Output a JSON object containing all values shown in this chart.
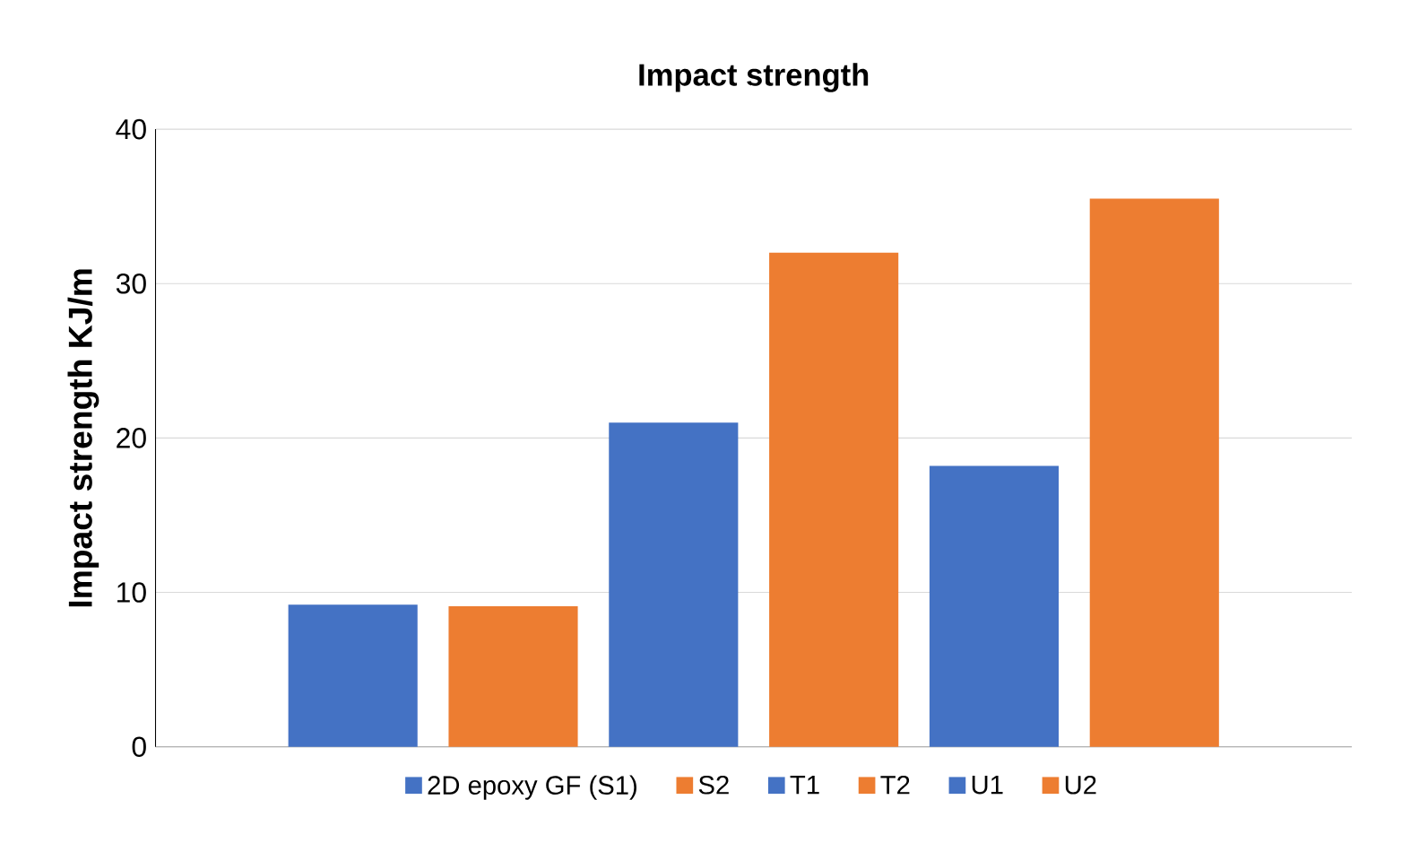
{
  "chart_data": {
    "type": "bar",
    "title": "Impact strength",
    "ylabel": "Impact strength KJ/m",
    "categories": [
      null
    ],
    "series": [
      {
        "name": "2D epoxy GF (S1)",
        "color": "#4472c4",
        "values": [
          9.2
        ]
      },
      {
        "name": "S2",
        "color": "#ed7d31",
        "values": [
          9.1
        ]
      },
      {
        "name": "T1",
        "color": "#4472c4",
        "values": [
          21.0
        ]
      },
      {
        "name": "T2",
        "color": "#ed7d31",
        "values": [
          32.0
        ]
      },
      {
        "name": "U1",
        "color": "#4472c4",
        "values": [
          18.2
        ]
      },
      {
        "name": "U2",
        "color": "#ed7d31",
        "values": [
          35.5
        ]
      }
    ],
    "ylim": [
      0,
      40
    ],
    "yticks": [
      0,
      10,
      20,
      30,
      40
    ],
    "grid": "y",
    "legend": "bottom"
  }
}
